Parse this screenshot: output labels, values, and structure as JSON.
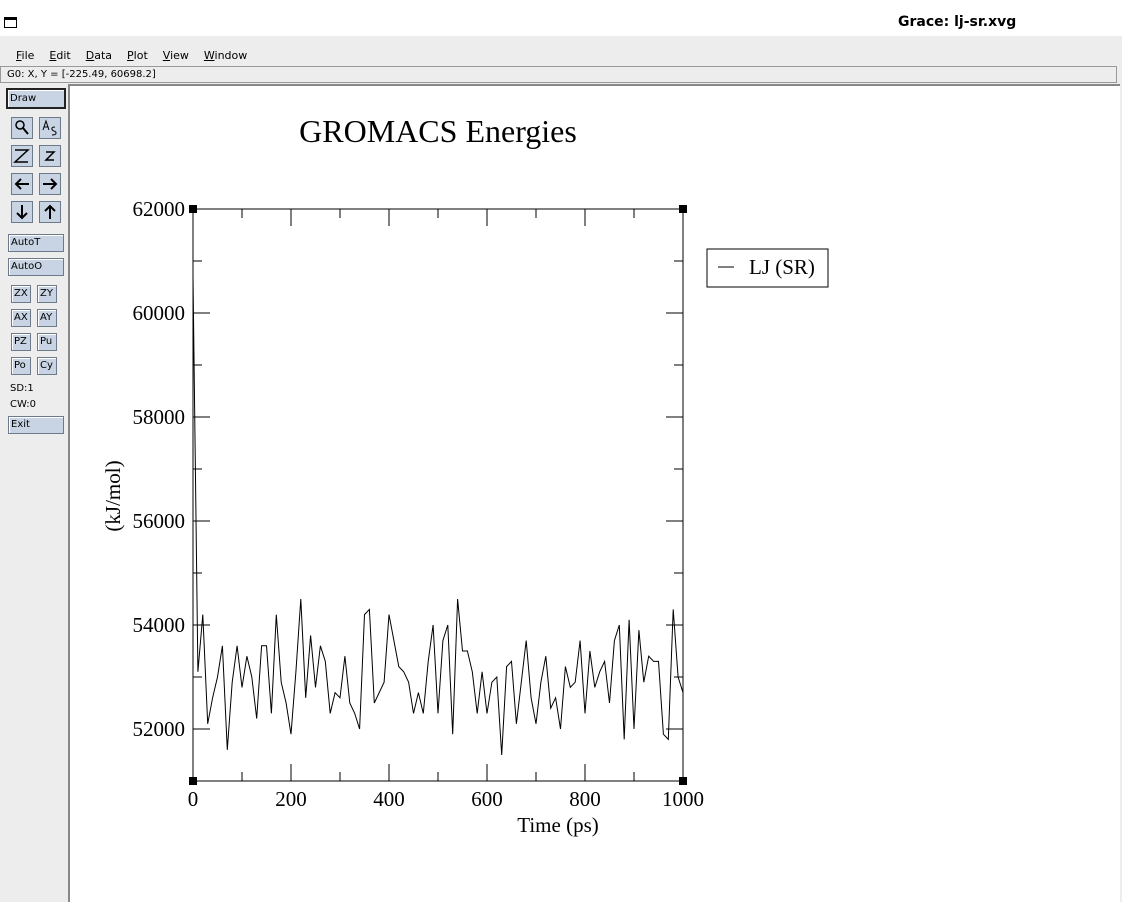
{
  "window": {
    "title": "Grace: lj-sr.xvg"
  },
  "menu": [
    "File",
    "Edit",
    "Data",
    "Plot",
    "View",
    "Window"
  ],
  "status": "G0: X, Y = [-225.49, 60698.2]",
  "toolbar": {
    "draw": "Draw",
    "buttons": [
      "AutoT",
      "AutoO"
    ],
    "pairs": [
      [
        "ZX",
        "ZY"
      ],
      [
        "AX",
        "AY"
      ],
      [
        "PZ",
        "Pu"
      ],
      [
        "Po",
        "Cy"
      ]
    ],
    "info": [
      "SD:1",
      "CW:0"
    ],
    "exit": "Exit"
  },
  "chart_data": {
    "type": "line",
    "title": "GROMACS Energies",
    "x_label": "Time (ps)",
    "y_label": "(kJ/mol)",
    "xlim": [
      0,
      1000
    ],
    "ylim": [
      51000,
      62000
    ],
    "xticks": [
      0,
      200,
      400,
      600,
      800,
      1000
    ],
    "yticks": [
      52000,
      54000,
      56000,
      58000,
      60000,
      62000
    ],
    "minor_xticks": [
      100,
      300,
      500,
      700,
      900
    ],
    "minor_yticks": [
      51000,
      53000,
      55000,
      57000,
      59000,
      61000
    ],
    "legend": "upper right outside",
    "x": [
      0,
      10,
      20,
      30,
      40,
      50,
      60,
      70,
      80,
      90,
      100,
      110,
      120,
      130,
      140,
      150,
      160,
      170,
      180,
      190,
      200,
      210,
      220,
      230,
      240,
      250,
      260,
      270,
      280,
      290,
      300,
      310,
      320,
      330,
      340,
      350,
      360,
      370,
      380,
      390,
      400,
      410,
      420,
      430,
      440,
      450,
      460,
      470,
      480,
      490,
      500,
      510,
      520,
      530,
      540,
      550,
      560,
      570,
      580,
      590,
      600,
      610,
      620,
      630,
      640,
      650,
      660,
      670,
      680,
      690,
      700,
      710,
      720,
      730,
      740,
      750,
      760,
      770,
      780,
      790,
      800,
      810,
      820,
      830,
      840,
      850,
      860,
      870,
      880,
      890,
      900,
      910,
      920,
      930,
      940,
      950,
      960,
      970,
      980,
      990,
      1000
    ],
    "series": [
      {
        "name": "LJ (SR)",
        "color": "#000000",
        "values": [
          60700,
          53100,
          54200,
          52100,
          52600,
          53000,
          53600,
          51600,
          52900,
          53600,
          52800,
          53400,
          53000,
          52200,
          53600,
          53600,
          52300,
          54200,
          52900,
          52500,
          51900,
          53100,
          54500,
          52600,
          53800,
          52800,
          53600,
          53300,
          52300,
          52700,
          52600,
          53400,
          52500,
          52300,
          52000,
          54200,
          54300,
          52500,
          52700,
          52900,
          54200,
          53700,
          53200,
          53100,
          52900,
          52300,
          52700,
          52300,
          53300,
          54000,
          52300,
          53700,
          54000,
          51900,
          54500,
          53500,
          53500,
          53100,
          52300,
          53100,
          52300,
          52900,
          53000,
          51500,
          53200,
          53300,
          52100,
          52900,
          53700,
          52600,
          52100,
          52900,
          53400,
          52400,
          52600,
          52000,
          53200,
          52800,
          52900,
          53700,
          52300,
          53500,
          52800,
          53100,
          53300,
          52500,
          53700,
          54000,
          51800,
          54100,
          52000,
          53900,
          52900,
          53400,
          53300,
          53300,
          51900,
          51800,
          54300,
          53000,
          52700
        ]
      }
    ]
  }
}
